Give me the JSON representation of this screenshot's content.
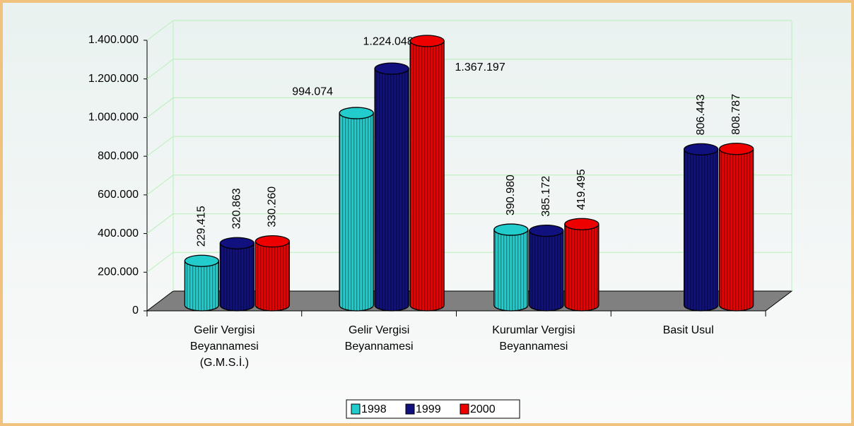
{
  "chart_data": {
    "type": "bar",
    "categories": [
      [
        "Gelir Vergisi",
        "Beyannamesi",
        "(G.M.S.İ.)"
      ],
      [
        "Gelir Vergisi",
        "Beyannamesi"
      ],
      [
        "Kurumlar Vergisi",
        "Beyannamesi"
      ],
      [
        "Basit Usul"
      ]
    ],
    "series": [
      {
        "name": "1998",
        "color": "#22cccc",
        "values": [
          229415,
          994074,
          390980,
          null
        ],
        "value_labels": [
          "229.415",
          "994.074",
          "390.980",
          null
        ]
      },
      {
        "name": "1999",
        "color": "#10107e",
        "values": [
          320863,
          1224048,
          385172,
          806443
        ],
        "value_labels": [
          "320.863",
          "1.224.048",
          "385.172",
          "806.443"
        ]
      },
      {
        "name": "2000",
        "color": "#ee0000",
        "values": [
          330260,
          1367197,
          419495,
          808787
        ],
        "value_labels": [
          "330.260",
          "1.367.197",
          "419.495",
          "808.787"
        ]
      }
    ],
    "ylim": [
      0,
      1400000
    ],
    "yticks": [
      0,
      {
        "value": 200000,
        "label": "200.000"
      },
      {
        "value": 400000,
        "label": "400.000"
      },
      {
        "value": 600000,
        "label": "600.000"
      },
      {
        "value": 800000,
        "label": "800.000"
      },
      {
        "value": 1000000,
        "label": "1.000.000"
      },
      {
        "value": 1200000,
        "label": "1.200.000"
      },
      {
        "value": 1400000,
        "label": "1.400.000"
      }
    ],
    "grid": true,
    "legend": "bottom"
  }
}
